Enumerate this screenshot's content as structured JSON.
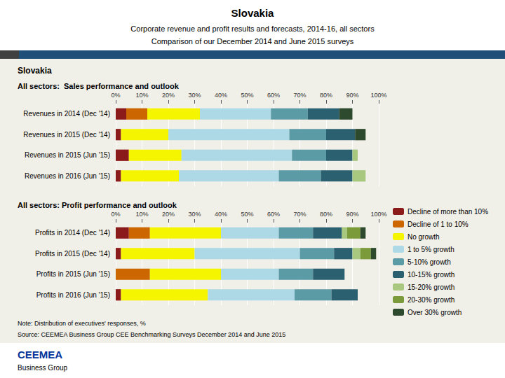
{
  "title": "Slovakia",
  "subtitle": [
    "Corporate revenue and profit results and forecasts, 2014-16, all sectors",
    "Comparison of our December 2014 and June 2015 surveys"
  ],
  "annotations": [
    "Slovakia",
    "Note: Distribution of executives' responses, %",
    "Source: CEEMEA Business Group CEE Benchmarking Surveys December 2014 and June 2015",
    "CEEMEA",
    "Business Group"
  ],
  "chart_data": [
    {
      "type": "bar",
      "orientation": "horizontal",
      "stacked": true,
      "grid": true,
      "title": "All sectors:  Sales performance and outlook",
      "categories": [
        "Revenues in 2014 (Dec '14)",
        "Revenues in 2015 (Dec '14)",
        "Revenues in 2015 (Jun '15)",
        "Revenues in 2016 (Jun '15)"
      ],
      "xlim": [
        0,
        100
      ],
      "xticks": [
        {
          "value": 0,
          "label": "0%"
        },
        {
          "value": 10,
          "label": "10%"
        },
        {
          "value": 20,
          "label": "20%"
        },
        {
          "value": 30,
          "label": "30%"
        },
        {
          "value": 40,
          "label": "40%"
        },
        {
          "value": 50,
          "label": "50%"
        },
        {
          "value": 60,
          "label": "60%"
        },
        {
          "value": 70,
          "label": "70%"
        },
        {
          "value": 80,
          "label": "80%"
        },
        {
          "value": 90,
          "label": "90%"
        },
        {
          "value": 100,
          "label": "100%"
        }
      ],
      "series": [
        {
          "name": "Decline of more than 10%",
          "color": "#8B1A1A",
          "values": [
            4,
            2,
            5,
            2
          ]
        },
        {
          "name": "Decline of 1 to 10%",
          "color": "#CC6600",
          "values": [
            8,
            0,
            0,
            0
          ]
        },
        {
          "name": "No growth",
          "color": "#F5F500",
          "values": [
            20,
            18,
            20,
            22
          ]
        },
        {
          "name": "1 to 5% growth",
          "color": "#ADD8E6",
          "values": [
            27,
            46,
            42,
            38
          ]
        },
        {
          "name": "5-10% growth",
          "color": "#5B9BA6",
          "values": [
            14,
            14,
            13,
            16
          ]
        },
        {
          "name": "10-15% growth",
          "color": "#2B6070",
          "values": [
            12,
            11,
            10,
            12
          ]
        },
        {
          "name": "15-20% growth",
          "color": "#A8C880",
          "values": [
            0,
            0,
            2,
            5
          ]
        },
        {
          "name": "20-30% growth",
          "color": "#7B9B3A",
          "values": [
            0,
            0,
            0,
            0
          ]
        },
        {
          "name": "Over 30% growth",
          "color": "#2E4A2E",
          "values": [
            5,
            4,
            0,
            0
          ]
        }
      ]
    },
    {
      "type": "bar",
      "orientation": "horizontal",
      "stacked": true,
      "grid": true,
      "legend": "right",
      "title": "All sectors: Profit performance and outlook",
      "categories": [
        "Profits in 2014 (Dec '14)",
        "Profits in 2015 (Dec '14)",
        "Profits in 2015 (Jun '15)",
        "Profits in 2016 (Jun '15)"
      ],
      "xlim": [
        0,
        100
      ],
      "xticks": [
        {
          "value": 0,
          "label": "0%"
        },
        {
          "value": 10,
          "label": "10%"
        },
        {
          "value": 20,
          "label": "20%"
        },
        {
          "value": 30,
          "label": "30%"
        },
        {
          "value": 40,
          "label": "40%"
        },
        {
          "value": 50,
          "label": "50%"
        },
        {
          "value": 60,
          "label": "60%"
        },
        {
          "value": 70,
          "label": "70%"
        },
        {
          "value": 80,
          "label": "80%"
        },
        {
          "value": 90,
          "label": "90%"
        },
        {
          "value": 100,
          "label": "100%"
        }
      ],
      "series": [
        {
          "name": "Decline of more than 10%",
          "color": "#8B1A1A",
          "values": [
            5,
            2,
            0,
            2
          ]
        },
        {
          "name": "Decline of 1 to 10%",
          "color": "#CC6600",
          "values": [
            8,
            0,
            13,
            0
          ]
        },
        {
          "name": "No growth",
          "color": "#F5F500",
          "values": [
            27,
            28,
            27,
            33
          ]
        },
        {
          "name": "1 to 5% growth",
          "color": "#ADD8E6",
          "values": [
            22,
            40,
            22,
            33
          ]
        },
        {
          "name": "5-10% growth",
          "color": "#5B9BA6",
          "values": [
            13,
            13,
            13,
            14
          ]
        },
        {
          "name": "10-15% growth",
          "color": "#2B6070",
          "values": [
            11,
            7,
            12,
            10
          ]
        },
        {
          "name": "15-20% growth",
          "color": "#A8C880",
          "values": [
            2,
            3,
            0,
            0
          ]
        },
        {
          "name": "20-30% growth",
          "color": "#7B9B3A",
          "values": [
            5,
            4,
            0,
            0
          ]
        },
        {
          "name": "Over 30% growth",
          "color": "#2E4A2E",
          "values": [
            2,
            2,
            0,
            0
          ]
        }
      ]
    }
  ]
}
